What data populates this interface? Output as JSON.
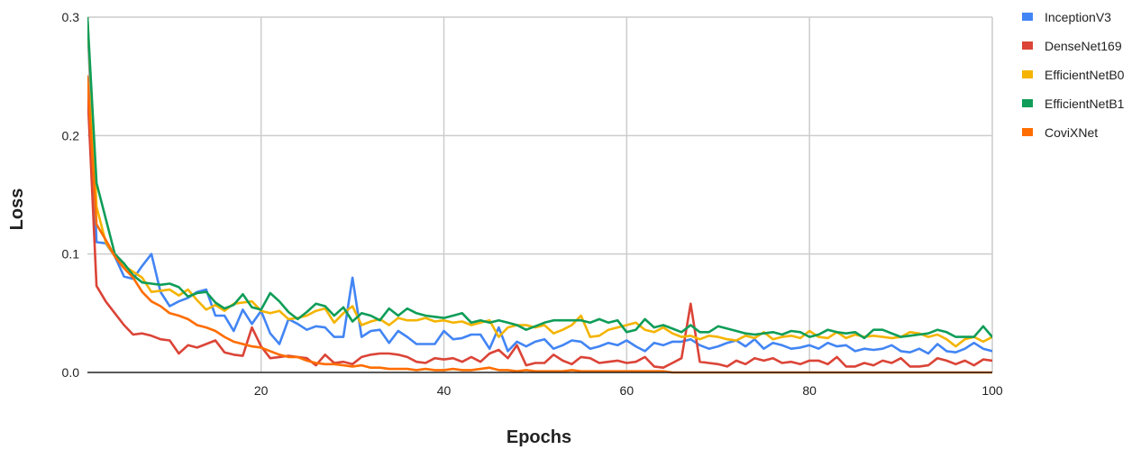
{
  "chart_data": {
    "type": "line",
    "xlabel": "Epochs",
    "ylabel": "Loss",
    "xlim": [
      1,
      100
    ],
    "ylim": [
      0,
      0.3
    ],
    "x_ticks": [
      20,
      40,
      60,
      80,
      100
    ],
    "y_ticks": [
      0.0,
      0.1,
      0.2,
      0.3
    ],
    "y_tick_labels": [
      "0.0",
      "0.1",
      "0.2",
      "0.3"
    ],
    "grid": true,
    "legend_position": "right",
    "x": [
      1,
      2,
      3,
      4,
      5,
      6,
      7,
      8,
      9,
      10,
      11,
      12,
      13,
      14,
      15,
      16,
      17,
      18,
      19,
      20,
      21,
      22,
      23,
      24,
      25,
      26,
      27,
      28,
      29,
      30,
      31,
      32,
      33,
      34,
      35,
      36,
      37,
      38,
      39,
      40,
      41,
      42,
      43,
      44,
      45,
      46,
      47,
      48,
      49,
      50,
      51,
      52,
      53,
      54,
      55,
      56,
      57,
      58,
      59,
      60,
      61,
      62,
      63,
      64,
      65,
      66,
      67,
      68,
      69,
      70,
      71,
      72,
      73,
      74,
      75,
      76,
      77,
      78,
      79,
      80,
      81,
      82,
      83,
      84,
      85,
      86,
      87,
      88,
      89,
      90,
      91,
      92,
      93,
      94,
      95,
      96,
      97,
      98,
      99,
      100
    ],
    "series": [
      {
        "name": "InceptionV3",
        "color": "#4285f4",
        "values": [
          0.3,
          0.11,
          0.109,
          0.098,
          0.081,
          0.079,
          0.09,
          0.1,
          0.068,
          0.056,
          0.06,
          0.063,
          0.068,
          0.07,
          0.048,
          0.048,
          0.035,
          0.053,
          0.041,
          0.052,
          0.033,
          0.024,
          0.045,
          0.041,
          0.036,
          0.039,
          0.038,
          0.03,
          0.03,
          0.08,
          0.03,
          0.035,
          0.036,
          0.025,
          0.035,
          0.03,
          0.024,
          0.024,
          0.024,
          0.035,
          0.028,
          0.029,
          0.032,
          0.032,
          0.02,
          0.038,
          0.018,
          0.026,
          0.022,
          0.026,
          0.028,
          0.02,
          0.023,
          0.027,
          0.026,
          0.02,
          0.022,
          0.025,
          0.023,
          0.027,
          0.022,
          0.018,
          0.025,
          0.023,
          0.026,
          0.026,
          0.028,
          0.023,
          0.02,
          0.022,
          0.025,
          0.027,
          0.022,
          0.028,
          0.02,
          0.025,
          0.023,
          0.02,
          0.021,
          0.023,
          0.02,
          0.025,
          0.022,
          0.023,
          0.018,
          0.02,
          0.019,
          0.02,
          0.023,
          0.018,
          0.017,
          0.02,
          0.016,
          0.024,
          0.018,
          0.017,
          0.02,
          0.025,
          0.02,
          0.018
        ]
      },
      {
        "name": "DenseNet169",
        "color": "#db4437",
        "values": [
          0.24,
          0.073,
          0.06,
          0.05,
          0.04,
          0.032,
          0.033,
          0.031,
          0.028,
          0.027,
          0.016,
          0.023,
          0.021,
          0.024,
          0.027,
          0.017,
          0.015,
          0.014,
          0.038,
          0.022,
          0.012,
          0.013,
          0.014,
          0.013,
          0.012,
          0.006,
          0.015,
          0.008,
          0.009,
          0.007,
          0.013,
          0.015,
          0.016,
          0.016,
          0.015,
          0.013,
          0.009,
          0.008,
          0.012,
          0.011,
          0.012,
          0.009,
          0.013,
          0.009,
          0.016,
          0.019,
          0.012,
          0.023,
          0.006,
          0.008,
          0.008,
          0.015,
          0.01,
          0.007,
          0.013,
          0.012,
          0.008,
          0.009,
          0.01,
          0.008,
          0.009,
          0.013,
          0.005,
          0.004,
          0.008,
          0.012,
          0.058,
          0.009,
          0.008,
          0.007,
          0.005,
          0.01,
          0.007,
          0.012,
          0.01,
          0.012,
          0.008,
          0.009,
          0.007,
          0.01,
          0.01,
          0.007,
          0.013,
          0.005,
          0.005,
          0.008,
          0.006,
          0.01,
          0.008,
          0.012,
          0.005,
          0.005,
          0.006,
          0.012,
          0.01,
          0.007,
          0.01,
          0.006,
          0.011,
          0.01
        ]
      },
      {
        "name": "EfficientNetB0",
        "color": "#f4b400",
        "values": [
          0.3,
          0.14,
          0.11,
          0.098,
          0.09,
          0.085,
          0.08,
          0.068,
          0.069,
          0.07,
          0.065,
          0.07,
          0.061,
          0.053,
          0.057,
          0.052,
          0.058,
          0.059,
          0.06,
          0.052,
          0.05,
          0.052,
          0.045,
          0.046,
          0.048,
          0.052,
          0.054,
          0.042,
          0.05,
          0.056,
          0.04,
          0.043,
          0.045,
          0.04,
          0.046,
          0.044,
          0.044,
          0.046,
          0.043,
          0.044,
          0.042,
          0.043,
          0.04,
          0.042,
          0.044,
          0.03,
          0.038,
          0.04,
          0.04,
          0.038,
          0.04,
          0.033,
          0.036,
          0.04,
          0.048,
          0.03,
          0.031,
          0.036,
          0.038,
          0.04,
          0.042,
          0.036,
          0.034,
          0.038,
          0.033,
          0.03,
          0.031,
          0.028,
          0.031,
          0.03,
          0.028,
          0.027,
          0.031,
          0.029,
          0.034,
          0.028,
          0.03,
          0.031,
          0.029,
          0.035,
          0.03,
          0.029,
          0.034,
          0.029,
          0.032,
          0.03,
          0.031,
          0.03,
          0.029,
          0.03,
          0.034,
          0.033,
          0.03,
          0.032,
          0.028,
          0.022,
          0.028,
          0.03,
          0.026,
          0.03
        ]
      },
      {
        "name": "EfficientNetB1",
        "color": "#0f9d58",
        "values": [
          0.3,
          0.16,
          0.13,
          0.1,
          0.092,
          0.082,
          0.076,
          0.075,
          0.074,
          0.075,
          0.072,
          0.064,
          0.067,
          0.068,
          0.059,
          0.054,
          0.057,
          0.066,
          0.055,
          0.053,
          0.067,
          0.06,
          0.051,
          0.045,
          0.051,
          0.058,
          0.056,
          0.048,
          0.055,
          0.043,
          0.05,
          0.048,
          0.044,
          0.054,
          0.048,
          0.054,
          0.05,
          0.048,
          0.047,
          0.046,
          0.048,
          0.05,
          0.042,
          0.044,
          0.042,
          0.044,
          0.042,
          0.04,
          0.036,
          0.039,
          0.042,
          0.044,
          0.044,
          0.044,
          0.044,
          0.042,
          0.045,
          0.042,
          0.044,
          0.034,
          0.036,
          0.045,
          0.038,
          0.04,
          0.037,
          0.034,
          0.04,
          0.034,
          0.034,
          0.039,
          0.037,
          0.035,
          0.033,
          0.032,
          0.033,
          0.034,
          0.032,
          0.035,
          0.034,
          0.03,
          0.032,
          0.036,
          0.034,
          0.033,
          0.034,
          0.029,
          0.036,
          0.036,
          0.033,
          0.03,
          0.031,
          0.032,
          0.033,
          0.036,
          0.034,
          0.03,
          0.03,
          0.03,
          0.039,
          0.03
        ]
      },
      {
        "name": "CoviXNet",
        "color": "#ff6d00",
        "values": [
          0.25,
          0.125,
          0.112,
          0.098,
          0.088,
          0.08,
          0.068,
          0.06,
          0.056,
          0.05,
          0.048,
          0.045,
          0.04,
          0.038,
          0.035,
          0.03,
          0.026,
          0.024,
          0.022,
          0.021,
          0.018,
          0.015,
          0.013,
          0.013,
          0.01,
          0.008,
          0.007,
          0.007,
          0.006,
          0.005,
          0.006,
          0.004,
          0.004,
          0.003,
          0.003,
          0.003,
          0.002,
          0.003,
          0.002,
          0.002,
          0.003,
          0.002,
          0.002,
          0.003,
          0.004,
          0.002,
          0.002,
          0.001,
          0.002,
          0.001,
          0.001,
          0.001,
          0.001,
          0.002,
          0.001,
          0.001,
          0.001,
          0.001,
          0.001,
          0.001,
          0.001,
          0.001,
          0.001,
          0.001,
          0.0,
          0.0,
          0.0,
          0.0,
          0.0,
          0.0,
          0.0,
          0.0,
          0.0,
          0.0,
          0.0,
          0.0,
          0.0,
          0.0,
          0.0,
          0.0,
          0.0,
          0.0,
          0.0,
          0.0,
          0.0,
          0.0,
          0.0,
          0.0,
          0.0,
          0.0,
          0.0,
          0.0,
          0.0,
          0.0,
          0.0,
          0.0,
          0.0,
          0.0,
          0.0,
          0.0
        ]
      }
    ]
  }
}
